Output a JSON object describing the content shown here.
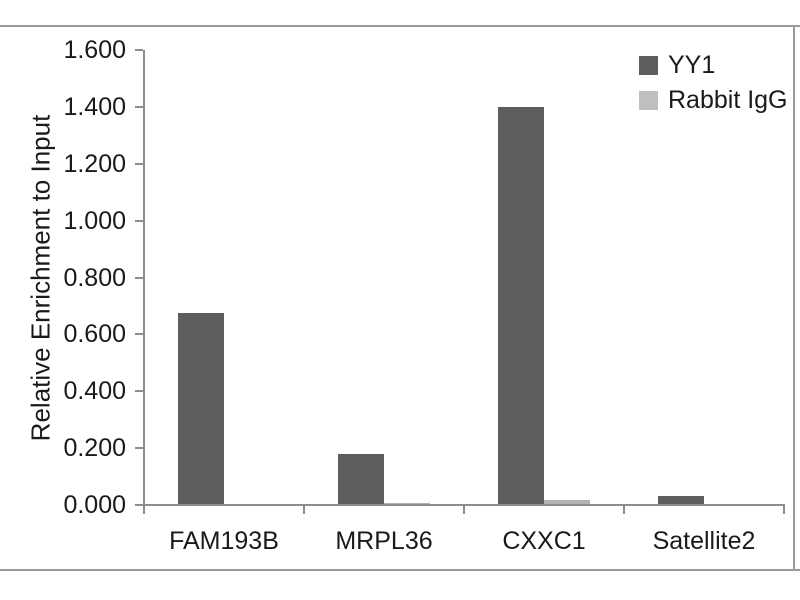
{
  "image": {
    "background": "#ffffff",
    "frame_color": "#9a9a9a"
  },
  "chart_data": {
    "type": "bar",
    "title": "",
    "xlabel": "",
    "ylabel": "Relative Enrichment to Input",
    "categories": [
      "FAM193B",
      "MRPL36",
      "CXXC1",
      "Satellite2"
    ],
    "series": [
      {
        "name": "YY1",
        "color": "#5d5d5d",
        "values": [
          0.675,
          0.18,
          1.4,
          0.032
        ]
      },
      {
        "name": "Rabbit IgG",
        "color": "#b3b3b3",
        "values": [
          0.005,
          0.008,
          0.018,
          0.005
        ]
      }
    ],
    "ylim": [
      0,
      1.6
    ],
    "ytick_step": 0.2,
    "ytick_labels": [
      "0.000",
      "0.200",
      "0.400",
      "0.600",
      "0.800",
      "1.000",
      "1.200",
      "1.400",
      "1.600"
    ],
    "grid": false,
    "legend_position": "top-right",
    "axis_color": "#8e8e8e",
    "text_color": "#1a1a1a"
  }
}
